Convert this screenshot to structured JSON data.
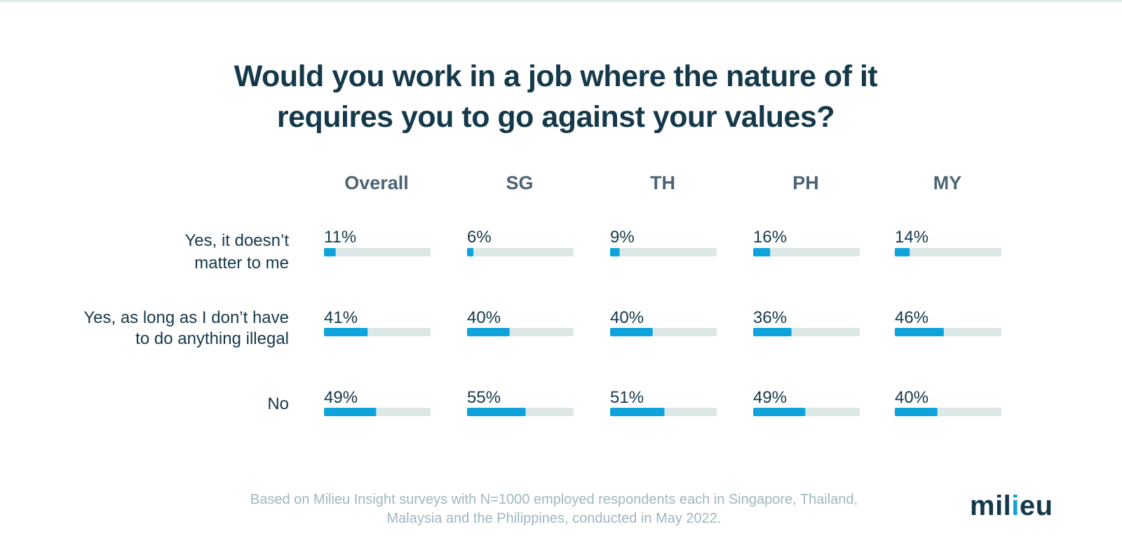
{
  "colors": {
    "title": "#15394b",
    "header": "#4b6475",
    "text": "#15394b",
    "bar_fill": "#0fa3dc",
    "bar_track": "#dce8e6",
    "footnote": "#9fb7bd",
    "logo": "#15394b",
    "logo_dot": "#0fa3dc"
  },
  "title_lines": [
    "Would you work in a job where the nature of it",
    "requires you to go against your values?"
  ],
  "footnote_lines": [
    "Based on Milieu Insight surveys with N=1000 employed respondents each in Singapore, Thailand,",
    "Malaysia and the Philippines, conducted in May 2022."
  ],
  "logo": {
    "text_before": "mil",
    "dotted_letter": "i",
    "text_after": "eu"
  },
  "chart_data": {
    "type": "bar",
    "orientation": "horizontal",
    "value_unit": "%",
    "value_max": 100,
    "columns": [
      "Overall",
      "SG",
      "TH",
      "PH",
      "MY"
    ],
    "rows": [
      {
        "label_lines": [
          "Yes, it doesn’t",
          "matter to me"
        ],
        "values": [
          11,
          6,
          9,
          16,
          14
        ]
      },
      {
        "label_lines": [
          "Yes, as long as I don’t have",
          "to do anything illegal"
        ],
        "values": [
          41,
          40,
          40,
          36,
          46
        ]
      },
      {
        "label_lines": [
          "No"
        ],
        "values": [
          49,
          55,
          51,
          49,
          40
        ]
      }
    ]
  }
}
